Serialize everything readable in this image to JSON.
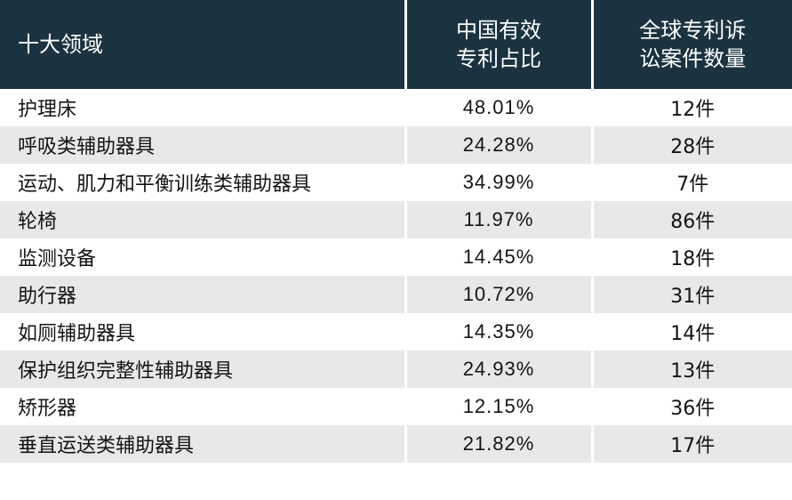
{
  "header": {
    "col1": "十大领域",
    "col2_line1": "中国有效",
    "col2_line2": "专利占比",
    "col3_line1": "全球专利诉",
    "col3_line2": "讼案件数量"
  },
  "rows": [
    {
      "field": "护理床",
      "share": "48.01%",
      "cases": "12件"
    },
    {
      "field": "呼吸类辅助器具",
      "share": "24.28%",
      "cases": "28件"
    },
    {
      "field": "运动、肌力和平衡训练类辅助器具",
      "share": "34.99%",
      "cases": "7件"
    },
    {
      "field": "轮椅",
      "share": "11.97%",
      "cases": "86件"
    },
    {
      "field": "监测设备",
      "share": "14.45%",
      "cases": "18件"
    },
    {
      "field": "助行器",
      "share": "10.72%",
      "cases": "31件"
    },
    {
      "field": "如厕辅助器具",
      "share": "14.35%",
      "cases": "14件"
    },
    {
      "field": "保护组织完整性辅助器具",
      "share": "24.93%",
      "cases": "13件"
    },
    {
      "field": "矫形器",
      "share": "12.15%",
      "cases": "36件"
    },
    {
      "field": "垂直运送类辅助器具",
      "share": "21.82%",
      "cases": "17件"
    }
  ]
}
